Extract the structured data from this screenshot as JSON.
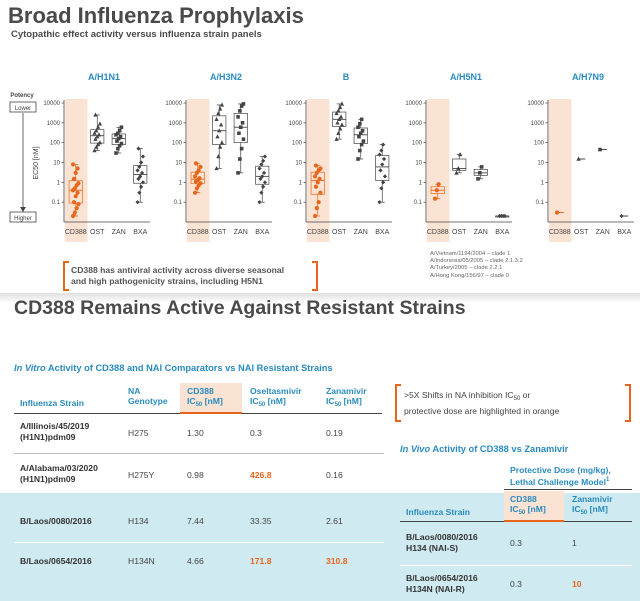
{
  "header": {
    "title": "Broad Influenza Prophylaxis",
    "subtitle": "Cytopathic effect activity versus influenza strain panels"
  },
  "colors": {
    "accent": "#e8661b",
    "teal_text": "#2a8bbf",
    "highlight_band": "#fbe3d3",
    "teal_band": "#cfeaf0"
  },
  "chart_data": [
    {
      "type": "scatter",
      "title": "A/H1N1",
      "ylabel": "EC50 [nM]",
      "yscale": "log",
      "ylim": [
        0.01,
        10000
      ],
      "yticks": [
        "0.1",
        "1",
        "10",
        "100",
        "1000",
        "10000"
      ],
      "categories": [
        "CD388",
        "OST",
        "ZAN",
        "BXA"
      ],
      "potency_labels": {
        "axis": "Potency",
        "top": "Lower",
        "bottom": "Higher"
      },
      "series": [
        {
          "values": [
            0.02,
            0.03,
            0.05,
            0.08,
            0.1,
            0.2,
            0.3,
            0.4,
            0.5,
            0.7,
            0.9,
            1.5,
            3,
            5,
            8
          ]
        },
        {
          "values": [
            40,
            60,
            80,
            100,
            150,
            200,
            250,
            300,
            400,
            600,
            900,
            2500
          ]
        },
        {
          "values": [
            30,
            50,
            70,
            90,
            120,
            160,
            200,
            250,
            300,
            400,
            600
          ]
        },
        {
          "values": [
            0.1,
            0.3,
            0.6,
            1,
            1.5,
            2,
            3,
            4,
            6,
            10,
            20,
            50
          ]
        }
      ]
    },
    {
      "type": "scatter",
      "title": "A/H3N2",
      "yscale": "log",
      "ylim": [
        0.01,
        10000
      ],
      "yticks": [
        "0.1",
        "1",
        "10",
        "100",
        "1000",
        "10000"
      ],
      "categories": [
        "CD388",
        "OST",
        "ZAN",
        "BXA"
      ],
      "series": [
        {
          "values": [
            0.3,
            0.5,
            0.7,
            0.9,
            1.1,
            1.3,
            1.6,
            2,
            3,
            4,
            6,
            9
          ]
        },
        {
          "values": [
            5,
            20,
            60,
            100,
            200,
            400,
            800,
            1500,
            3000,
            5000,
            8000
          ]
        },
        {
          "values": [
            3,
            15,
            50,
            150,
            300,
            600,
            1000,
            2000,
            4000,
            7000,
            9000
          ]
        },
        {
          "values": [
            0.1,
            0.3,
            0.6,
            1,
            1.5,
            2,
            3,
            5,
            8,
            12,
            20
          ]
        }
      ]
    },
    {
      "type": "scatter",
      "title": "B",
      "yscale": "log",
      "ylim": [
        0.01,
        10000
      ],
      "yticks": [
        "0.1",
        "1",
        "10",
        "100",
        "1000",
        "10000"
      ],
      "categories": [
        "CD388",
        "OST",
        "ZAN",
        "BXA"
      ],
      "series": [
        {
          "values": [
            0.02,
            0.05,
            0.1,
            0.3,
            0.6,
            1,
            1.5,
            2,
            3,
            4,
            5,
            7
          ]
        },
        {
          "values": [
            150,
            300,
            500,
            800,
            1000,
            1500,
            2000,
            3000,
            4000,
            6000,
            9000
          ]
        },
        {
          "values": [
            15,
            40,
            80,
            120,
            200,
            300,
            400,
            600,
            900,
            1500
          ]
        },
        {
          "values": [
            0.1,
            0.5,
            1,
            2,
            4,
            8,
            15,
            25,
            40,
            80
          ]
        }
      ]
    },
    {
      "type": "scatter",
      "title": "A/H5N1",
      "yscale": "log",
      "ylim": [
        0.01,
        10000
      ],
      "yticks": [
        "0.1",
        "1",
        "10",
        "100",
        "1000",
        "10000"
      ],
      "categories": [
        "CD388",
        "OST",
        "ZAN",
        "BXA"
      ],
      "series": [
        {
          "values": [
            0.15,
            0.4,
            0.8
          ]
        },
        {
          "values": [
            3,
            5,
            25
          ]
        },
        {
          "values": [
            1.5,
            3,
            6
          ]
        },
        {
          "values": [
            0.02,
            0.02,
            0.02,
            0.02
          ]
        }
      ]
    },
    {
      "type": "scatter",
      "title": "A/H7N9",
      "yscale": "log",
      "ylim": [
        0.01,
        10000
      ],
      "yticks": [
        "0.1",
        "1",
        "10",
        "100",
        "1000",
        "10000"
      ],
      "categories": [
        "CD388",
        "OST",
        "ZAN",
        "BXA"
      ],
      "series": [
        {
          "values": [
            0.03
          ]
        },
        {
          "values": [
            15
          ]
        },
        {
          "values": [
            45
          ]
        },
        {
          "values": [
            0.02
          ]
        }
      ]
    }
  ],
  "h5n1_strains": [
    "A/Vietnam/1194/2004 – clade 1",
    "A/Indonesia/05/2005 – clade 2.1.3.2",
    "A/Turkey/2005 – clade 2.2.1",
    "A/Hong Kong/156/97 – clade 0"
  ],
  "callout1": {
    "line1": "CD388 has antiviral activity across diverse seasonal",
    "line2": "and high pathogenicity strains, including H5N1"
  },
  "section2": {
    "title": "CD388 Remains Active Against Resistant Strains"
  },
  "invitro": {
    "title_italic": "In Vitro",
    "title_rest": " Activity of CD388 and NAI Comparators vs NAI Resistant Strains",
    "headers": {
      "strain": "Influenza Strain",
      "genotype_1": "NA",
      "genotype_2": "Genotype",
      "cd388_1": "CD388",
      "cd388_2": "IC",
      "cd388_sub": "50",
      "cd388_unit": " [nM]",
      "ost_1": "Oseltasmivir",
      "ost_2": "IC",
      "ost_sub": "50",
      "ost_unit": " [nM]",
      "zan_1": "Zanamivir",
      "zan_2": "IC",
      "zan_sub": "50",
      "zan_unit": " [nM]"
    },
    "rows": [
      {
        "strain_1": "A/Illinois/45/2019",
        "strain_2": "(H1N1)pdm09",
        "genotype": "H275",
        "cd388": "1.30",
        "ost": "0.3",
        "zan": "0.19"
      },
      {
        "strain_1": "A/Alabama/03/2020",
        "strain_2": "(H1N1)pdm09",
        "genotype": "H275Y",
        "cd388": "0.98",
        "ost": "426.8",
        "zan": "0.16"
      },
      {
        "strain_1": "B/Laos/0080/2016",
        "strain_2": "",
        "genotype": "H134",
        "cd388": "7.44",
        "ost": "33.35",
        "zan": "2.61"
      },
      {
        "strain_1": "B/Laos/0654/2016",
        "strain_2": "",
        "genotype": "H134N",
        "cd388": "4.66",
        "ost": "171.8",
        "zan": "310.8"
      }
    ]
  },
  "callout2": {
    "line1a": ">5X Shifts in NA inhibition IC",
    "line1sub": "50",
    "line1b": " or",
    "line2": "protective dose are highlighted in orange"
  },
  "invivo": {
    "title_italic": "In Vivo",
    "title_rest": " Activity of CD388 vs Zanamivir",
    "group_header_1": "Protective Dose (mg/kg),",
    "group_header_2": "Lethal Challenge Model",
    "group_header_sup": "1",
    "headers": {
      "strain": "Influenza Strain",
      "cd388_1": "CD388",
      "cd388_2": "IC",
      "cd388_sub": "50",
      "cd388_unit": " [nM]",
      "zan_1": "Zanamivir",
      "zan_2": "IC",
      "zan_sub": "50",
      "zan_unit": " [nM]"
    },
    "rows": [
      {
        "strain_1": "B/Laos/0080/2016",
        "strain_2": "H134 (NAI-S)",
        "cd388": "0.3",
        "zan": "1"
      },
      {
        "strain_1": "B/Laos/0654/2016",
        "strain_2": "H134N (NAI-R)",
        "cd388": "0.3",
        "zan": "10"
      }
    ]
  }
}
